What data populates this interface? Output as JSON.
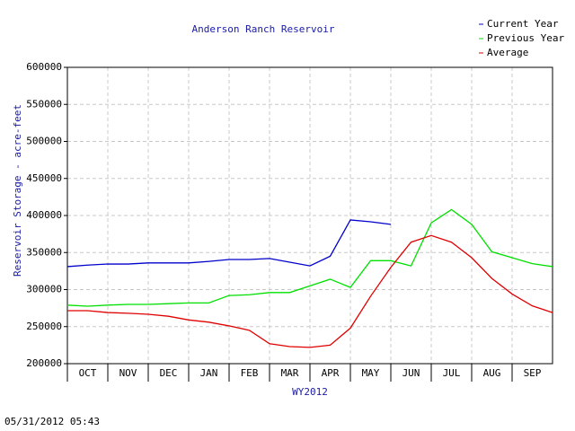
{
  "chart_data": {
    "type": "line",
    "title": "Anderson Ranch Reservoir",
    "y_label": "Reservoir Storage - acre-feet",
    "x_label": "WY2012",
    "timestamp": "05/31/2012 05:43",
    "categories": [
      "OCT",
      "NOV",
      "DEC",
      "JAN",
      "FEB",
      "MAR",
      "APR",
      "MAY",
      "JUN",
      "JUL",
      "AUG",
      "SEP"
    ],
    "x": [
      0,
      0.5,
      1,
      1.5,
      2,
      2.5,
      3,
      3.5,
      4,
      4.5,
      5,
      5.5,
      6,
      6.5,
      7,
      7.5,
      8,
      8.5,
      9,
      9.5,
      10,
      10.5,
      11,
      11.5,
      12
    ],
    "xlim": [
      0,
      12
    ],
    "ylim": [
      200000,
      600000
    ],
    "yticks": [
      200000,
      250000,
      300000,
      350000,
      400000,
      450000,
      500000,
      550000,
      600000
    ],
    "grid": true,
    "legend": "top-right",
    "series": [
      {
        "name": "Current Year",
        "color": "#0000cc",
        "values": [
          331000,
          333000,
          334500,
          334500,
          336000,
          336000,
          336000,
          338000,
          340600,
          340600,
          342000,
          337000,
          332000,
          345000,
          394000,
          391500,
          388000,
          null,
          null,
          null,
          null,
          null,
          null,
          null,
          null
        ]
      },
      {
        "name": "Previous Year",
        "color": "#00e000",
        "values": [
          279000,
          277600,
          279000,
          280000,
          280000,
          281000,
          282000,
          282000,
          292000,
          293000,
          296000,
          296000,
          305000,
          314000,
          303000,
          339000,
          339000,
          332000,
          390000,
          408000,
          388000,
          351000,
          343000,
          335000,
          331000
        ]
      },
      {
        "name": "Average",
        "color": "#e00000",
        "values": [
          271500,
          271500,
          269000,
          268000,
          266700,
          264000,
          259000,
          256000,
          251000,
          245000,
          227000,
          223000,
          222000,
          225000,
          248000,
          291000,
          330000,
          364000,
          373000,
          364000,
          343000,
          315000,
          294000,
          278000,
          269000
        ]
      }
    ]
  }
}
